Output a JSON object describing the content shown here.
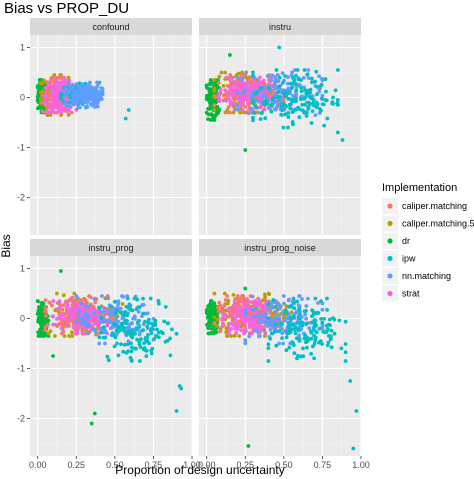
{
  "chart_data": {
    "type": "scatter",
    "title": "Bias vs PROP_DU",
    "xlabel": "Proportion of design uncertainty",
    "ylabel": "Bias",
    "xlim": [
      -0.05,
      1.0
    ],
    "ylim": [
      -2.75,
      1.25
    ],
    "x_ticks": [
      0.0,
      0.25,
      0.5,
      0.75,
      1.0
    ],
    "x_tick_labels": [
      "0.00",
      "0.25",
      "0.50",
      "0.75",
      "1.00"
    ],
    "y_ticks": [
      1,
      0,
      -1,
      -2
    ],
    "y_tick_labels": [
      "1",
      "0",
      "-1",
      "-2"
    ],
    "grid": true,
    "legend_position": "right",
    "legend": {
      "title": "Implementation",
      "items": [
        {
          "label": "caliper.matching",
          "color": "#F8766D"
        },
        {
          "label": "caliper.matching.5",
          "color": "#B79F00"
        },
        {
          "label": "dr",
          "color": "#00BA38"
        },
        {
          "label": "ipw",
          "color": "#00BFC4"
        },
        {
          "label": "nn.matching",
          "color": "#619CFF"
        },
        {
          "label": "strat",
          "color": "#F564E3"
        }
      ]
    },
    "panels": [
      {
        "facet": "confound",
        "clusters": [
          {
            "series": "dr",
            "x": [
              0.0,
              0.06
            ],
            "y": [
              -0.3,
              0.35
            ]
          },
          {
            "series": "caliper.matching.5",
            "x": [
              0.02,
              0.2
            ],
            "y": [
              -0.35,
              0.45
            ]
          },
          {
            "series": "caliper.matching",
            "x": [
              0.03,
              0.22
            ],
            "y": [
              -0.3,
              0.4
            ]
          },
          {
            "series": "strat",
            "x": [
              0.05,
              0.25
            ],
            "y": [
              -0.3,
              0.35
            ]
          },
          {
            "series": "ipw",
            "x": [
              0.15,
              0.4
            ],
            "y": [
              -0.2,
              0.3
            ]
          },
          {
            "series": "nn.matching",
            "x": [
              0.18,
              0.42
            ],
            "y": [
              -0.2,
              0.3
            ]
          }
        ],
        "outliers": [
          {
            "series": "ipw",
            "x": 0.57,
            "y": -0.42
          },
          {
            "series": "ipw",
            "x": 0.59,
            "y": -0.25
          }
        ]
      },
      {
        "facet": "instru",
        "clusters": [
          {
            "series": "dr",
            "x": [
              0.0,
              0.08
            ],
            "y": [
              -0.45,
              0.35
            ]
          },
          {
            "series": "caliper.matching.5",
            "x": [
              0.05,
              0.5
            ],
            "y": [
              -0.3,
              0.5
            ]
          },
          {
            "series": "caliper.matching",
            "x": [
              0.05,
              0.5
            ],
            "y": [
              -0.3,
              0.45
            ]
          },
          {
            "series": "strat",
            "x": [
              0.08,
              0.45
            ],
            "y": [
              -0.25,
              0.4
            ]
          },
          {
            "series": "nn.matching",
            "x": [
              0.2,
              0.75
            ],
            "y": [
              -0.35,
              0.55
            ]
          },
          {
            "series": "ipw",
            "x": [
              0.3,
              0.85
            ],
            "y": [
              -0.6,
              0.55
            ]
          }
        ],
        "outliers": [
          {
            "series": "dr",
            "x": 0.25,
            "y": -1.05
          },
          {
            "series": "dr",
            "x": 0.15,
            "y": 0.85
          },
          {
            "series": "ipw",
            "x": 0.88,
            "y": -0.85
          },
          {
            "series": "ipw",
            "x": 0.85,
            "y": -0.7
          },
          {
            "series": "ipw",
            "x": 0.47,
            "y": 1.0
          }
        ]
      },
      {
        "facet": "instru_prog",
        "clusters": [
          {
            "series": "dr",
            "x": [
              0.0,
              0.07
            ],
            "y": [
              -0.35,
              0.35
            ]
          },
          {
            "series": "caliper.matching.5",
            "x": [
              0.05,
              0.55
            ],
            "y": [
              -0.35,
              0.5
            ]
          },
          {
            "series": "caliper.matching",
            "x": [
              0.05,
              0.5
            ],
            "y": [
              -0.3,
              0.45
            ]
          },
          {
            "series": "strat",
            "x": [
              0.1,
              0.45
            ],
            "y": [
              -0.3,
              0.35
            ]
          },
          {
            "series": "nn.matching",
            "x": [
              0.25,
              0.75
            ],
            "y": [
              -0.5,
              0.45
            ]
          },
          {
            "series": "ipw",
            "x": [
              0.4,
              0.9
            ],
            "y": [
              -0.85,
              0.4
            ]
          }
        ],
        "outliers": [
          {
            "series": "dr",
            "x": 0.37,
            "y": -1.9
          },
          {
            "series": "dr",
            "x": 0.35,
            "y": -2.1
          },
          {
            "series": "dr",
            "x": 0.1,
            "y": -0.75
          },
          {
            "series": "dr",
            "x": 0.15,
            "y": 0.95
          },
          {
            "series": "ipw",
            "x": 0.93,
            "y": -1.4
          },
          {
            "series": "ipw",
            "x": 0.92,
            "y": -1.35
          },
          {
            "series": "ipw",
            "x": 0.9,
            "y": -1.85
          }
        ]
      },
      {
        "facet": "instru_prog_noise",
        "clusters": [
          {
            "series": "dr",
            "x": [
              0.0,
              0.07
            ],
            "y": [
              -0.3,
              0.35
            ]
          },
          {
            "series": "caliper.matching.5",
            "x": [
              0.05,
              0.55
            ],
            "y": [
              -0.35,
              0.5
            ]
          },
          {
            "series": "caliper.matching",
            "x": [
              0.05,
              0.5
            ],
            "y": [
              -0.3,
              0.45
            ]
          },
          {
            "series": "strat",
            "x": [
              0.1,
              0.45
            ],
            "y": [
              -0.3,
              0.35
            ]
          },
          {
            "series": "nn.matching",
            "x": [
              0.25,
              0.75
            ],
            "y": [
              -0.5,
              0.45
            ]
          },
          {
            "series": "ipw",
            "x": [
              0.4,
              0.9
            ],
            "y": [
              -0.85,
              0.4
            ]
          }
        ],
        "outliers": [
          {
            "series": "dr",
            "x": 0.25,
            "y": 0.6
          },
          {
            "series": "dr",
            "x": 0.27,
            "y": -2.55
          },
          {
            "series": "ipw",
            "x": 0.93,
            "y": -1.25
          },
          {
            "series": "ipw",
            "x": 0.97,
            "y": -1.85
          },
          {
            "series": "ipw",
            "x": 0.95,
            "y": -2.6
          }
        ]
      }
    ]
  }
}
